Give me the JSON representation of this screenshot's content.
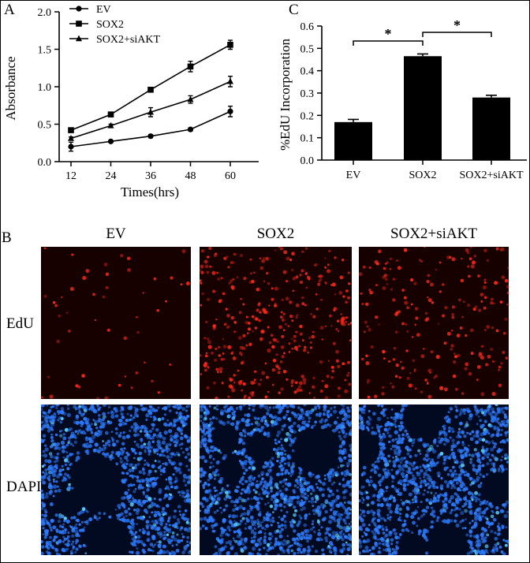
{
  "panel_labels": {
    "a": "A",
    "b": "B",
    "c": "C"
  },
  "chart_data": [
    {
      "type": "line",
      "id": "A",
      "xlabel": "Times(hrs)",
      "ylabel": "Absorbance",
      "x": [
        12,
        24,
        36,
        48,
        60
      ],
      "xticks": [
        "12",
        "24",
        "36",
        "48",
        "60"
      ],
      "ylim": [
        0,
        2.0
      ],
      "yticks": [
        "0.0",
        "0.5",
        "1.0",
        "1.5",
        "2.0"
      ],
      "legend_position": "top-left",
      "series": [
        {
          "name": "EV",
          "marker": "circle",
          "values": [
            0.2,
            0.27,
            0.34,
            0.43,
            0.67
          ],
          "errors": [
            0.06,
            0.01,
            0.02,
            0.02,
            0.07
          ]
        },
        {
          "name": "SOX2",
          "marker": "square",
          "values": [
            0.42,
            0.63,
            0.96,
            1.27,
            1.56
          ],
          "errors": [
            0.02,
            0.02,
            0.02,
            0.07,
            0.06
          ]
        },
        {
          "name": "SOX2+siAKT",
          "marker": "triangle",
          "values": [
            0.31,
            0.48,
            0.66,
            0.83,
            1.07
          ],
          "errors": [
            0.02,
            0.02,
            0.06,
            0.05,
            0.07
          ]
        }
      ]
    },
    {
      "type": "bar",
      "id": "C",
      "ylabel": "%EdU Incorporation",
      "categories": [
        "EV",
        "SOX2",
        "SOX2+siAKT"
      ],
      "values": [
        0.17,
        0.465,
        0.28
      ],
      "errors": [
        0.012,
        0.01,
        0.01
      ],
      "ylim": [
        0,
        0.6
      ],
      "yticks": [
        "0.0",
        "0.1",
        "0.2",
        "0.3",
        "0.4",
        "0.5",
        "0.6"
      ],
      "bar_color": "#000000",
      "significance": [
        {
          "from": "EV",
          "to": "SOX2",
          "label": "*"
        },
        {
          "from": "SOX2",
          "to": "SOX2+siAKT",
          "label": "*"
        }
      ]
    }
  ],
  "microscopy": {
    "columns": [
      "EV",
      "SOX2",
      "SOX2+siAKT"
    ],
    "rows": [
      "EdU",
      "DAPI"
    ],
    "edu_color": "#ff2a1a",
    "dapi_color": "#2f7dff",
    "edu_density": [
      0.12,
      0.85,
      0.5
    ],
    "dapi_density": [
      1.0,
      1.0,
      1.0
    ]
  }
}
